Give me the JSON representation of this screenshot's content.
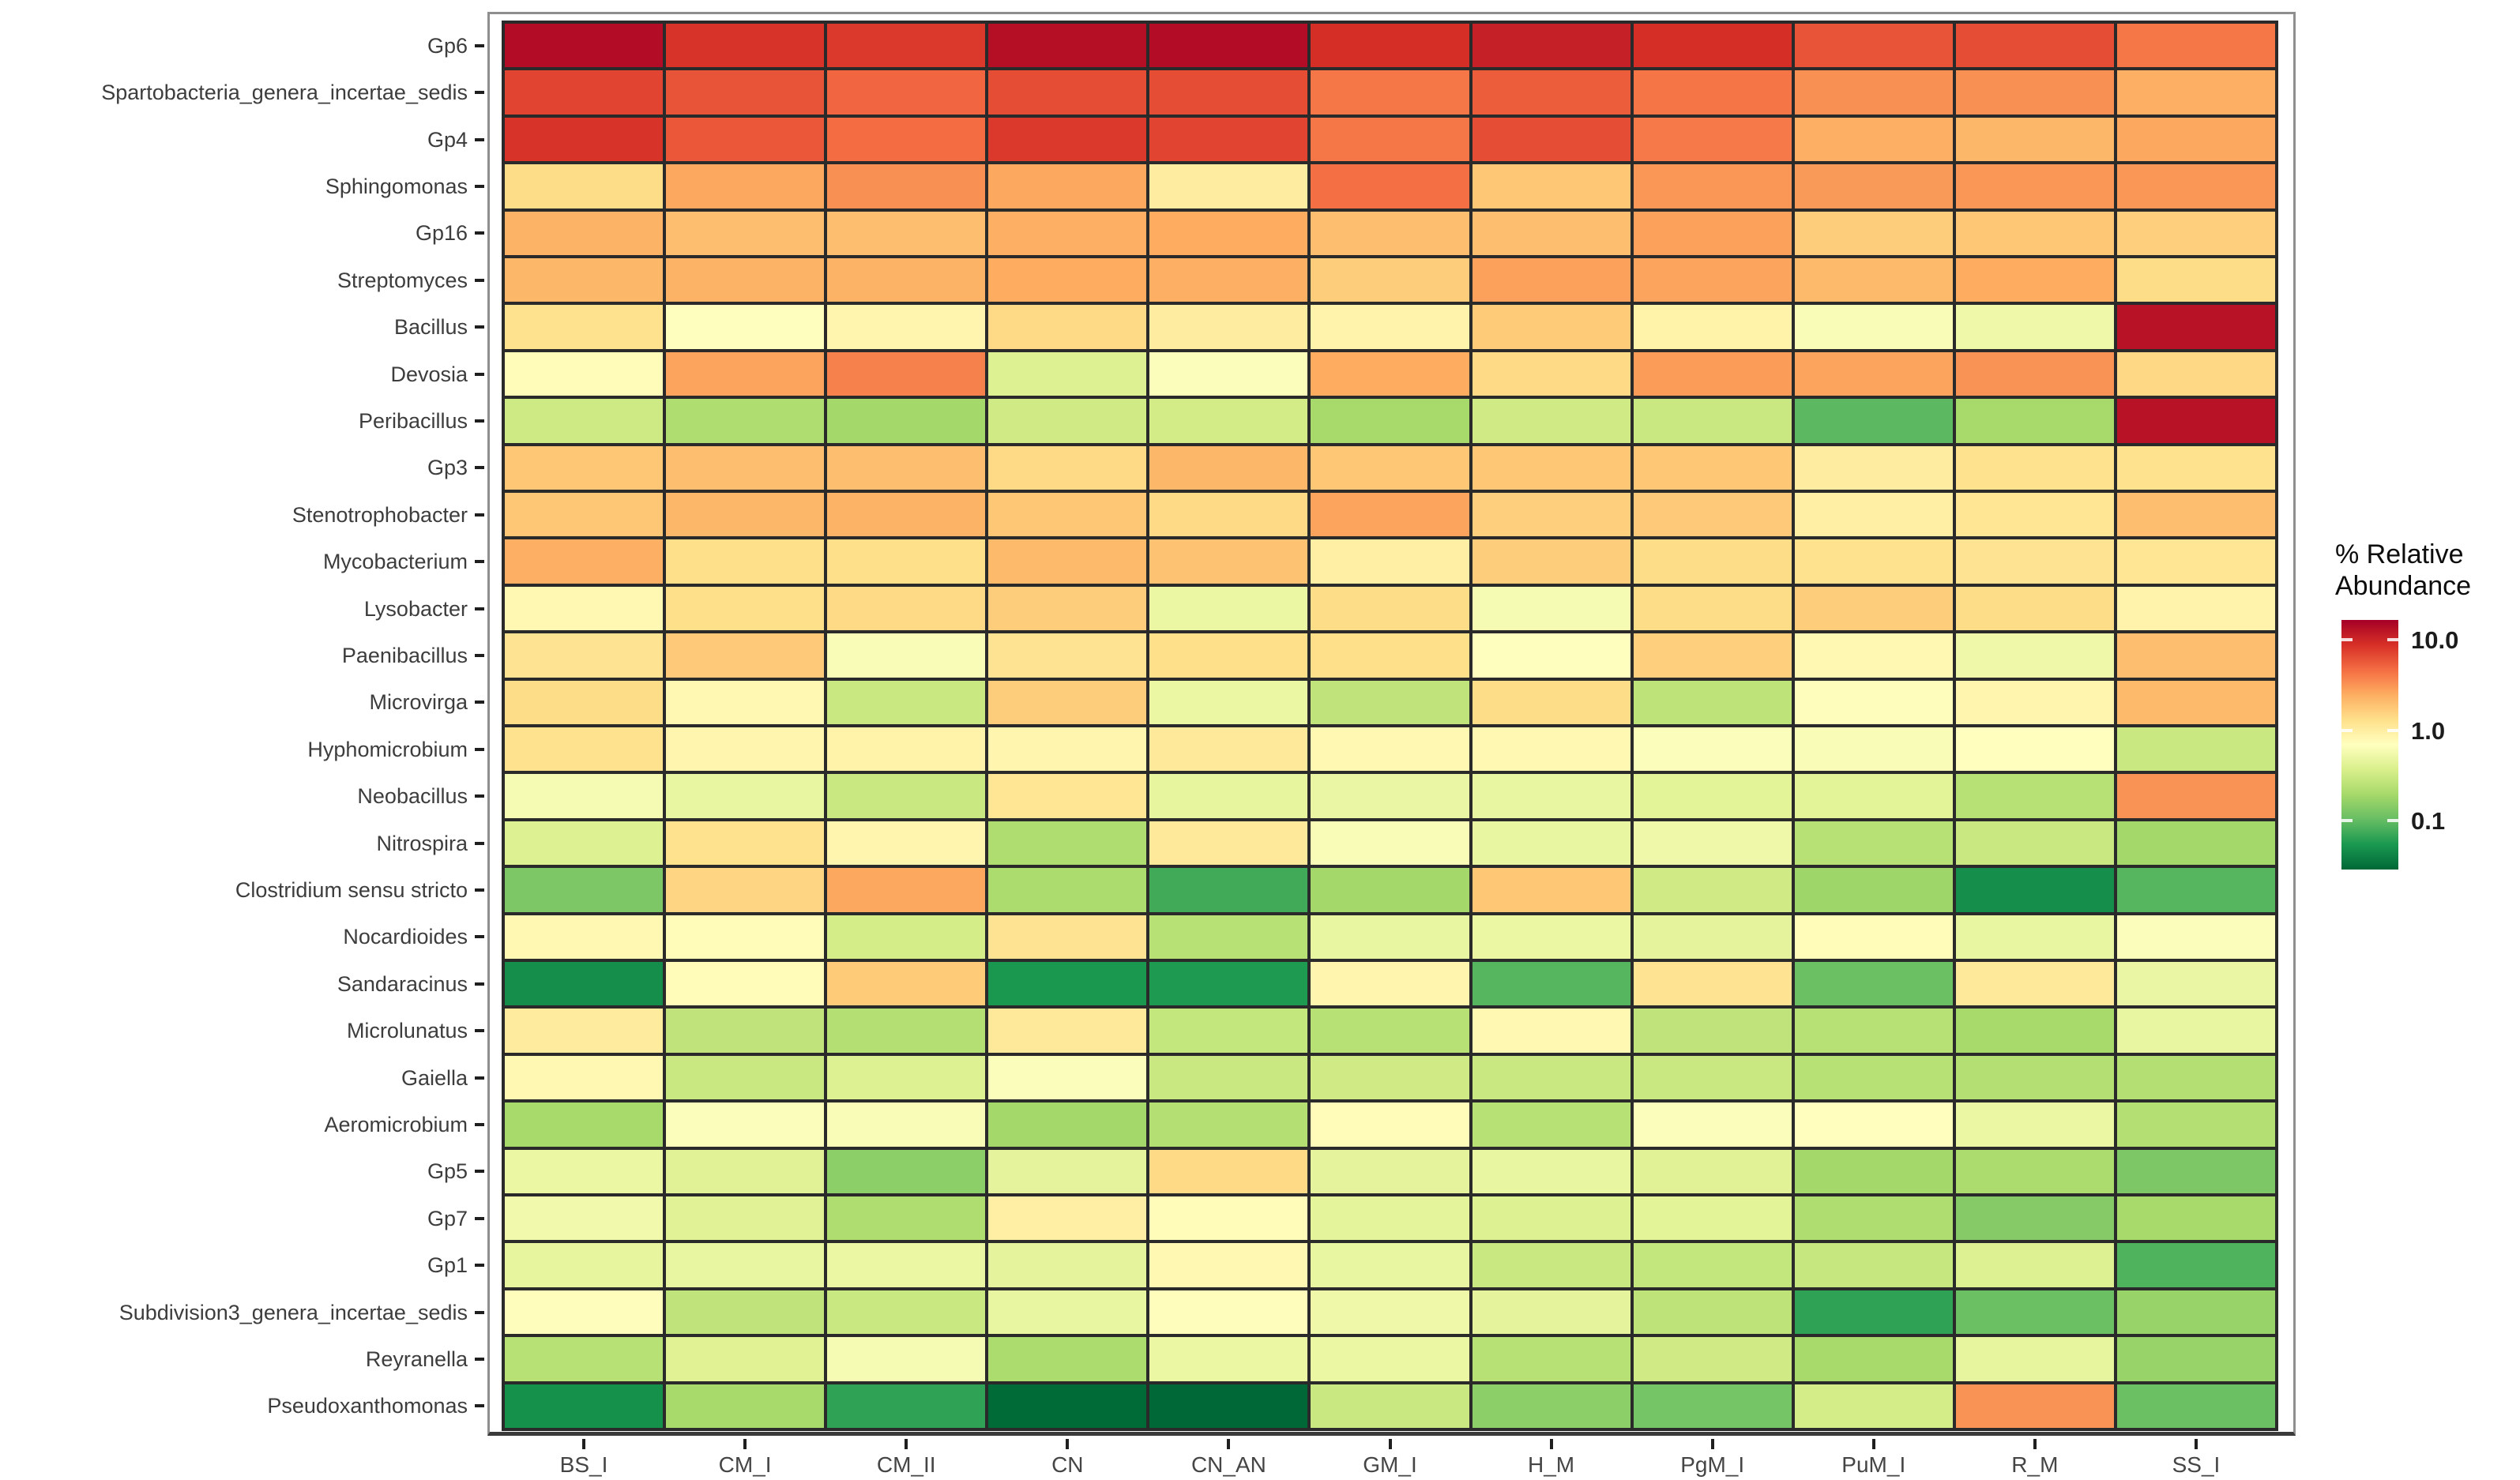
{
  "chart_data": {
    "type": "heatmap",
    "legend_title": "% Relative Abundance",
    "x_categories": [
      "BS_I",
      "CM_I",
      "CM_II",
      "CN",
      "CN_AN",
      "GM_I",
      "H_M",
      "PgM_I",
      "PuM_I",
      "R_M",
      "SS_I"
    ],
    "y_categories": [
      "Gp6",
      "Spartobacteria_genera_incertae_sedis",
      "Gp4",
      "Sphingomonas",
      "Gp16",
      "Streptomyces",
      "Bacillus",
      "Devosia",
      "Peribacillus",
      "Gp3",
      "Stenotrophobacter",
      "Mycobacterium",
      "Lysobacter",
      "Paenibacillus",
      "Microvirga",
      "Hyphomicrobium",
      "Neobacillus",
      "Nitrospira",
      "Clostridium sensu stricto",
      "Nocardioides",
      "Sandaracinus",
      "Microlunatus",
      "Gaiella",
      "Aeromicrobium",
      "Gp5",
      "Gp7",
      "Gp1",
      "Subdivision3_genera_incertae_sedis",
      "Reyranella",
      "Pseudoxanthomonas"
    ],
    "values_percent_relative_abundance": [
      [
        14,
        8.5,
        8,
        13.5,
        14,
        9,
        11,
        9,
        6,
        6.5,
        4.2
      ],
      [
        7,
        6,
        5,
        6.5,
        6.5,
        4.2,
        5.5,
        4.3,
        3.3,
        3.3,
        2.4
      ],
      [
        8.5,
        5.8,
        4.7,
        8,
        7,
        4.2,
        6.5,
        4.1,
        2.4,
        2.2,
        2.6
      ],
      [
        1.35,
        2.6,
        3.3,
        2.6,
        1.0,
        4.5,
        1.8,
        3.1,
        3.0,
        3.1,
        3.1
      ],
      [
        2.3,
        2.0,
        2.0,
        2.4,
        2.5,
        2.0,
        2.0,
        2.8,
        1.65,
        1.8,
        1.6
      ],
      [
        2.2,
        2.3,
        2.3,
        2.5,
        2.4,
        1.65,
        2.8,
        2.7,
        2.1,
        2.5,
        1.35
      ],
      [
        1.25,
        0.68,
        0.85,
        1.4,
        1.0,
        0.88,
        1.7,
        0.9,
        0.62,
        0.52,
        13
      ],
      [
        0.75,
        2.7,
        3.8,
        0.4,
        0.65,
        2.5,
        1.4,
        2.9,
        2.7,
        3.2,
        1.45
      ],
      [
        0.32,
        0.22,
        0.19,
        0.33,
        0.34,
        0.2,
        0.33,
        0.3,
        0.095,
        0.2,
        13
      ],
      [
        1.8,
        2.0,
        2.0,
        1.4,
        2.2,
        1.8,
        1.8,
        1.8,
        1.0,
        1.25,
        1.25
      ],
      [
        1.8,
        2.2,
        2.3,
        1.8,
        1.4,
        2.7,
        1.6,
        1.75,
        0.95,
        1.15,
        2.0
      ],
      [
        2.4,
        1.3,
        1.3,
        2.1,
        1.9,
        0.95,
        1.65,
        1.35,
        1.25,
        1.2,
        1.15
      ],
      [
        0.8,
        1.3,
        1.4,
        1.65,
        0.5,
        1.35,
        0.6,
        1.35,
        1.65,
        1.35,
        0.88
      ],
      [
        1.2,
        1.75,
        0.62,
        1.2,
        1.3,
        1.3,
        0.68,
        1.6,
        0.8,
        0.52,
        2.0
      ],
      [
        1.35,
        0.8,
        0.3,
        1.65,
        0.5,
        0.27,
        1.35,
        0.26,
        0.72,
        0.85,
        2.1
      ],
      [
        1.25,
        0.85,
        0.9,
        0.85,
        1.1,
        0.8,
        0.8,
        0.65,
        0.62,
        0.7,
        0.3
      ],
      [
        0.6,
        0.48,
        0.3,
        1.15,
        0.46,
        0.49,
        0.48,
        0.43,
        0.43,
        0.24,
        3.2
      ],
      [
        0.4,
        1.25,
        0.85,
        0.22,
        1.1,
        0.62,
        0.48,
        0.52,
        0.24,
        0.3,
        0.19
      ],
      [
        0.13,
        1.5,
        2.6,
        0.21,
        0.075,
        0.19,
        1.8,
        0.33,
        0.18,
        0.048,
        0.09
      ],
      [
        0.8,
        0.75,
        0.35,
        1.2,
        0.24,
        0.48,
        0.5,
        0.45,
        0.75,
        0.48,
        0.65
      ],
      [
        0.048,
        0.75,
        1.7,
        0.055,
        0.057,
        0.85,
        0.09,
        1.2,
        0.11,
        1.1,
        0.49
      ],
      [
        1.05,
        0.27,
        0.23,
        1.1,
        0.28,
        0.24,
        0.8,
        0.27,
        0.24,
        0.2,
        0.48
      ],
      [
        0.8,
        0.3,
        0.4,
        0.65,
        0.3,
        0.33,
        0.3,
        0.3,
        0.24,
        0.23,
        0.23
      ],
      [
        0.2,
        0.65,
        0.62,
        0.19,
        0.23,
        0.75,
        0.24,
        0.65,
        0.7,
        0.5,
        0.23
      ],
      [
        0.5,
        0.42,
        0.15,
        0.45,
        1.4,
        0.45,
        0.48,
        0.42,
        0.19,
        0.21,
        0.13
      ],
      [
        0.55,
        0.42,
        0.22,
        0.95,
        0.75,
        0.44,
        0.4,
        0.43,
        0.22,
        0.14,
        0.2
      ],
      [
        0.46,
        0.48,
        0.5,
        0.45,
        0.8,
        0.48,
        0.3,
        0.28,
        0.29,
        0.4,
        0.085
      ],
      [
        0.72,
        0.27,
        0.3,
        0.48,
        0.72,
        0.52,
        0.45,
        0.26,
        0.065,
        0.11,
        0.17
      ],
      [
        0.24,
        0.41,
        0.6,
        0.21,
        0.5,
        0.5,
        0.24,
        0.33,
        0.2,
        0.46,
        0.17
      ],
      [
        0.05,
        0.2,
        0.065,
        0.03,
        0.028,
        0.3,
        0.15,
        0.12,
        0.35,
        3.2,
        0.11
      ]
    ],
    "scale": {
      "type": "log10",
      "domain": [
        0.029,
        16.5
      ],
      "legend_ticks": [
        10.0,
        1.0,
        0.1
      ],
      "legend_tick_labels": [
        "10.0",
        "1.0",
        "0.1"
      ]
    },
    "palette_low_to_high": [
      "#006837",
      "#1a9850",
      "#66bd63",
      "#a6d96a",
      "#d9ef8b",
      "#ffffbf",
      "#fee08b",
      "#fdae61",
      "#f46d43",
      "#d73027",
      "#a50026"
    ],
    "layout": {
      "grid_on": true,
      "grid_line_color": "#2a2a2a",
      "panel_border_color": "#8f8f8f",
      "axis_text_color": "#3d3d3d",
      "legend_position": "right"
    }
  },
  "legend": {
    "title_line1": "% Relative",
    "title_line2": "Abundance",
    "tick_labels": [
      "10.0",
      "1.0",
      "0.1"
    ]
  }
}
